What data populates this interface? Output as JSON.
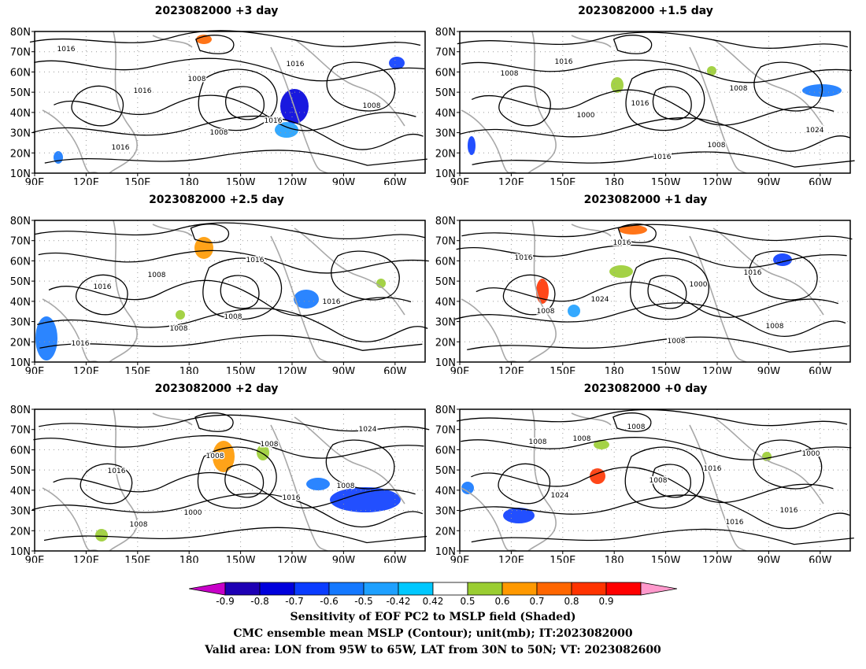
{
  "panels": [
    {
      "title": "2023082000 +3 day"
    },
    {
      "title": "2023082000 +1.5 day"
    },
    {
      "title": "2023082000 +2.5 day"
    },
    {
      "title": "2023082000 +1 day"
    },
    {
      "title": "2023082000 +2 day"
    },
    {
      "title": "2023082000 +0 day"
    }
  ],
  "axes": {
    "lat_labels": [
      "80N",
      "70N",
      "60N",
      "50N",
      "40N",
      "30N",
      "20N",
      "10N"
    ],
    "lon_labels": [
      "90E",
      "120E",
      "150E",
      "180",
      "150W",
      "120W",
      "90W",
      "60W"
    ]
  },
  "colorbar": {
    "labels": [
      "-0.9",
      "-0.8",
      "-0.7",
      "-0.6",
      "-0.5",
      "-0.42",
      "0.42",
      "0.5",
      "0.6",
      "0.7",
      "0.8",
      "0.9"
    ],
    "colors": [
      "#c800c8",
      "#1e00b4",
      "#0000dc",
      "#0a3cff",
      "#1478ff",
      "#1ea0ff",
      "#00c8ff",
      "#ffffff",
      "#9acd32",
      "#ff9900",
      "#ff6600",
      "#ff3300",
      "#ff0000",
      "#ff99cc"
    ]
  },
  "captions": {
    "line1": "Sensitivity of EOF PC2 to MSLP field (Shaded)",
    "line2": "CMC ensemble mean MSLP (Contour); unit(mb); IT:2023082000",
    "line3": "Valid area: LON from 95W to 65W, LAT from 30N to 50N; VT: 2023082600"
  },
  "contour_labels": [
    [
      "1016",
      "1016",
      "1008",
      "1016",
      "1008",
      "1016",
      "1008",
      "1016"
    ],
    [
      "1008",
      "1000",
      "1016",
      "1008",
      "1024",
      "1016",
      "1016",
      "1008"
    ],
    [
      "1016",
      "1008",
      "1016",
      "1016",
      "1016",
      "1008",
      "1008"
    ],
    [
      "1008",
      "1016",
      "1000",
      "1008",
      "1016",
      "1024",
      "1008",
      "1016"
    ],
    [
      "1008",
      "1008",
      "1016",
      "1024",
      "1016",
      "1000",
      "1008",
      "1008"
    ],
    [
      "1008",
      "1008",
      "1016",
      "1000",
      "1024",
      "1008",
      "1016",
      "1016",
      "1008"
    ]
  ]
}
